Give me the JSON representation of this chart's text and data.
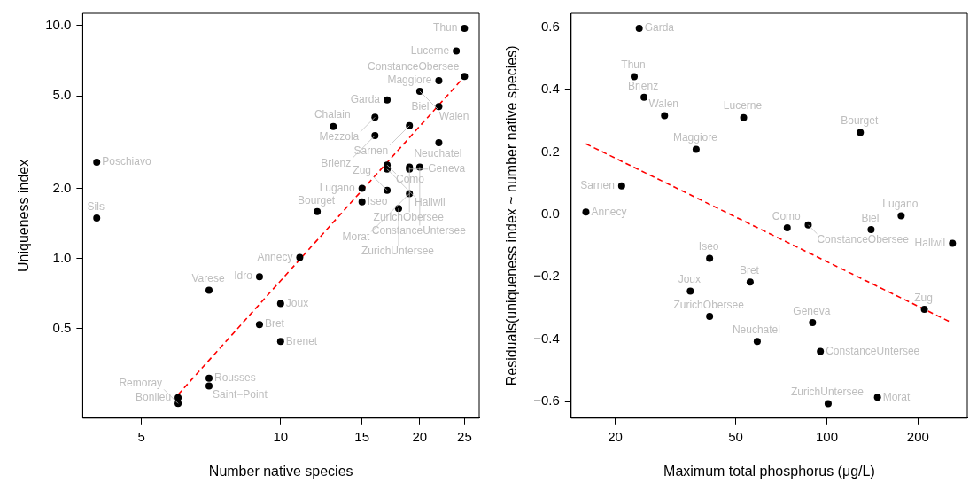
{
  "chart_data": [
    {
      "type": "scatter",
      "xlabel": "Number native species",
      "ylabel": "Uniqueness index",
      "log": "xy",
      "xlim": [
        3.73,
        26.9
      ],
      "ylim": [
        0.206,
        11.3
      ],
      "xticks": [
        5,
        10,
        15,
        20,
        25
      ],
      "yticks": [
        0.5,
        {
          "value": 1,
          "label": "1.0"
        },
        {
          "value": 2,
          "label": "2.0"
        },
        {
          "value": 5,
          "label": "5.0"
        },
        {
          "value": 10,
          "label": "10.0"
        }
      ],
      "grid": false,
      "legend": false,
      "marker": "circle",
      "series": [
        {
          "type": "scatter",
          "color": "#000000",
          "x": [
            25,
            24,
            25,
            22,
            20,
            17,
            22,
            16,
            19,
            13,
            16,
            22,
            17,
            17,
            19,
            19,
            20,
            15,
            17,
            19,
            15,
            18,
            12,
            4,
            4,
            11,
            9,
            7,
            10,
            9,
            10,
            7,
            7,
            6,
            6
          ],
          "values": [
            9.73,
            7.79,
            6.05,
            5.8,
            5.23,
            4.8,
            4.49,
            4.04,
            3.72,
            3.69,
            3.37,
            3.14,
            2.52,
            2.42,
            2.47,
            2.42,
            2.47,
            2.0,
            1.96,
            1.9,
            1.75,
            1.64,
            1.59,
            2.59,
            1.49,
            1.01,
            0.835,
            0.73,
            0.64,
            0.52,
            0.44,
            0.306,
            0.283,
            0.252,
            0.238
          ]
        },
        {
          "type": "line",
          "color": "#ff0000",
          "line_style": "dashed",
          "marker": "none",
          "x": [
            6,
            25
          ],
          "values": [
            0.26,
            6.05
          ]
        }
      ],
      "annotations": [
        {
          "text": "Thun",
          "x": 25,
          "y": 9.73
        },
        {
          "text": "Lucerne",
          "x": 24,
          "y": 7.79
        },
        {
          "text": "ConstanceObersee",
          "x": 25,
          "y": 6.05
        },
        {
          "text": "Maggiore",
          "x": 22,
          "y": 5.8
        },
        {
          "text": "Walen",
          "x": 20,
          "y": 5.23
        },
        {
          "text": "Garda",
          "x": 17,
          "y": 4.8
        },
        {
          "text": "Biel",
          "x": 22,
          "y": 4.49
        },
        {
          "text": "Mezzola",
          "x": 16,
          "y": 4.04
        },
        {
          "text": "Sarnen",
          "x": 19,
          "y": 3.72
        },
        {
          "text": "Chalain",
          "x": 13,
          "y": 3.69
        },
        {
          "text": "Brienz",
          "x": 16,
          "y": 3.37
        },
        {
          "text": "Neuchatel",
          "x": 22,
          "y": 3.14
        },
        {
          "text": "Como",
          "x": 17,
          "y": 2.52
        },
        {
          "text": "Hallwil",
          "x": 17,
          "y": 2.42
        },
        {
          "text": "ZurichObersee",
          "x": 19,
          "y": 2.47
        },
        {
          "text": "Geneva",
          "x": 19,
          "y": 2.42
        },
        {
          "text": "ConstanceUntersee",
          "x": 20,
          "y": 2.47
        },
        {
          "text": "Lugano",
          "x": 15,
          "y": 2.0
        },
        {
          "text": "Zug",
          "x": 17,
          "y": 1.96
        },
        {
          "text": "Morat",
          "x": 19,
          "y": 1.9
        },
        {
          "text": "Iseo",
          "x": 15,
          "y": 1.75
        },
        {
          "text": "ZurichUntersee",
          "x": 18,
          "y": 1.64
        },
        {
          "text": "Bourget",
          "x": 12,
          "y": 1.59
        },
        {
          "text": "Poschiavo",
          "x": 4,
          "y": 2.59
        },
        {
          "text": "Sils",
          "x": 4,
          "y": 1.49
        },
        {
          "text": "Annecy",
          "x": 11,
          "y": 1.01
        },
        {
          "text": "Idro",
          "x": 9,
          "y": 0.835
        },
        {
          "text": "Varese",
          "x": 7,
          "y": 0.73
        },
        {
          "text": "Joux",
          "x": 10,
          "y": 0.64
        },
        {
          "text": "Bret",
          "x": 9,
          "y": 0.52
        },
        {
          "text": "Brenet",
          "x": 10,
          "y": 0.44
        },
        {
          "text": "Rousses",
          "x": 7,
          "y": 0.306
        },
        {
          "text": "Saint−Point",
          "x": 7,
          "y": 0.283
        },
        {
          "text": "Bonlieu",
          "x": 6,
          "y": 0.252
        },
        {
          "text": "Remoray",
          "x": 6,
          "y": 0.238
        }
      ]
    },
    {
      "type": "scatter",
      "xlabel": "Maximum total phosphorus (μg/L)",
      "ylabel": "Residuals(uniqueness index ~ number native species)",
      "log": "x",
      "xlim": [
        14.3,
        291
      ],
      "ylim": [
        -0.653,
        0.644
      ],
      "xticks": [
        20,
        50,
        100,
        200
      ],
      "yticks": [
        {
          "value": -0.6,
          "label": "−0.6"
        },
        {
          "value": -0.4,
          "label": "−0.4"
        },
        {
          "value": -0.2,
          "label": "−0.2"
        },
        {
          "value": 0,
          "label": "0.0"
        },
        0.2,
        0.4,
        0.6
      ],
      "grid": false,
      "legend": false,
      "marker": "circle",
      "series": [
        {
          "type": "scatter",
          "color": "#000000",
          "x": [
            24,
            23.1,
            24.9,
            29.1,
            53.1,
            37,
            129,
            21,
            16,
            74,
            86.8,
            140,
            176,
            260,
            41,
            55.8,
            35.4,
            41,
            89.7,
            58.9,
            95.2,
            101,
            147,
            210
          ],
          "values": [
            0.596,
            0.441,
            0.375,
            0.316,
            0.31,
            0.208,
            0.262,
            0.091,
            0.007,
            -0.043,
            -0.034,
            -0.049,
            -0.005,
            -0.093,
            -0.141,
            -0.217,
            -0.246,
            -0.327,
            -0.347,
            -0.407,
            -0.439,
            -0.607,
            -0.586,
            -0.304
          ]
        },
        {
          "type": "line",
          "color": "#ff0000",
          "line_style": "dashed",
          "marker": "none",
          "x": [
            16,
            257
          ],
          "values": [
            0.226,
            -0.346
          ]
        }
      ],
      "annotations": [
        {
          "text": "Garda",
          "x": 24,
          "y": 0.596
        },
        {
          "text": "Thun",
          "x": 23.1,
          "y": 0.441
        },
        {
          "text": "Brienz",
          "x": 24.9,
          "y": 0.375
        },
        {
          "text": "Walen",
          "x": 29.1,
          "y": 0.316
        },
        {
          "text": "Lucerne",
          "x": 53.1,
          "y": 0.31
        },
        {
          "text": "Maggiore",
          "x": 37,
          "y": 0.208
        },
        {
          "text": "Bourget",
          "x": 129,
          "y": 0.262
        },
        {
          "text": "Sarnen",
          "x": 21,
          "y": 0.091
        },
        {
          "text": "Annecy",
          "x": 16,
          "y": 0.007
        },
        {
          "text": "Como",
          "x": 74,
          "y": -0.043
        },
        {
          "text": "ConstanceObersee",
          "x": 86.8,
          "y": -0.034
        },
        {
          "text": "Biel",
          "x": 140,
          "y": -0.049
        },
        {
          "text": "Lugano",
          "x": 176,
          "y": -0.005
        },
        {
          "text": "Hallwil",
          "x": 260,
          "y": -0.093
        },
        {
          "text": "Iseo",
          "x": 41,
          "y": -0.141
        },
        {
          "text": "Bret",
          "x": 55.8,
          "y": -0.217
        },
        {
          "text": "Joux",
          "x": 35.4,
          "y": -0.246
        },
        {
          "text": "ZurichObersee",
          "x": 41,
          "y": -0.327
        },
        {
          "text": "Geneva",
          "x": 89.7,
          "y": -0.347
        },
        {
          "text": "Neuchatel",
          "x": 58.9,
          "y": -0.407
        },
        {
          "text": "ConstanceUntersee",
          "x": 95.2,
          "y": -0.439
        },
        {
          "text": "ZurichUntersee",
          "x": 101,
          "y": -0.607
        },
        {
          "text": "Morat",
          "x": 147,
          "y": -0.586
        },
        {
          "text": "Zug",
          "x": 210,
          "y": -0.304
        }
      ]
    }
  ]
}
